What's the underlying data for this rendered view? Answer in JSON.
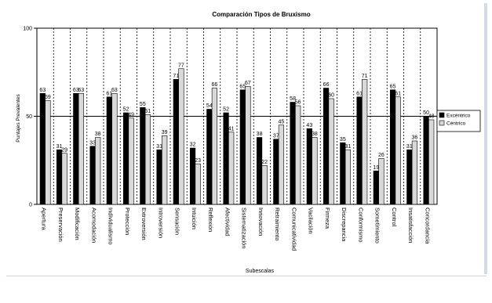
{
  "chart_data": {
    "type": "bar",
    "title": "Comparación Tipos de Bruxismo",
    "xlabel": "Subescalas",
    "ylabel": "Puntajes Prevalentes",
    "ylim": [
      0,
      100
    ],
    "yticks": [
      0,
      50,
      100
    ],
    "reference_line": 50,
    "grid": "vertical dashed separators between categories",
    "legend_position": "right",
    "categories": [
      "Apertura",
      "Preservación",
      "Modificación",
      "Acomodación",
      "Individualismo",
      "Protección",
      "Extroversión",
      "Introversión",
      "Sensación",
      "Intuición",
      "Reflexión",
      "Afectividad",
      "Sistematización",
      "Innovación",
      "Retraimiento",
      "Comunicatividad",
      "Vacilación",
      "Firmeza",
      "Discrepancia",
      "Conformismo",
      "Sometimiento",
      "Control",
      "Insatisfacción",
      "Concordancia"
    ],
    "series": [
      {
        "name": "Excéntrico",
        "color": "#000000",
        "values": [
          63,
          31,
          63,
          33,
          61,
          52,
          55,
          31,
          71,
          32,
          54,
          52,
          65,
          38,
          37,
          58,
          43,
          66,
          35,
          61,
          19,
          65,
          31,
          50
        ]
      },
      {
        "name": "Céntrico",
        "color": "#d9d9d9",
        "values": [
          59,
          29,
          63,
          38,
          63,
          49,
          51,
          39,
          77,
          23,
          66,
          41,
          67,
          22,
          45,
          56,
          38,
          60,
          31,
          71,
          26,
          61,
          36,
          48
        ]
      }
    ]
  }
}
